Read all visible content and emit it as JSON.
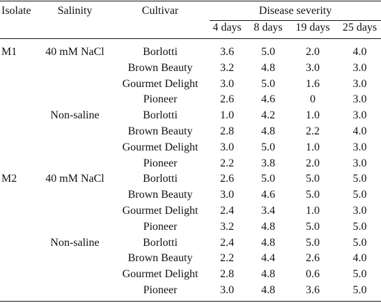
{
  "headers": {
    "isolate": "Isolate",
    "salinity": "Salinity",
    "cultivar": "Cultivar",
    "disease_severity": "Disease severity",
    "days": [
      "4 days",
      "8 days",
      "19 days",
      "25 days"
    ]
  },
  "rows": [
    {
      "isolate": "M1",
      "salinity": "40 mM NaCl",
      "cultivar": "Borlotti",
      "values": [
        "3.6",
        "5.0",
        "2.0",
        "4.0"
      ]
    },
    {
      "isolate": "",
      "salinity": "",
      "cultivar": "Brown Beauty",
      "values": [
        "3.2",
        "4.8",
        "3.0",
        "3.0"
      ]
    },
    {
      "isolate": "",
      "salinity": "",
      "cultivar": "Gourmet Delight",
      "values": [
        "3.0",
        "5.0",
        "1.6",
        "3.0"
      ]
    },
    {
      "isolate": "",
      "salinity": "",
      "cultivar": "Pioneer",
      "values": [
        "2.6",
        "4.6",
        "0",
        "3.0"
      ]
    },
    {
      "isolate": "",
      "salinity": "Non-saline",
      "cultivar": "Borlotti",
      "values": [
        "1.0",
        "4.2",
        "1.0",
        "3.0"
      ]
    },
    {
      "isolate": "",
      "salinity": "",
      "cultivar": "Brown Beauty",
      "values": [
        "2.8",
        "4.8",
        "2.2",
        "4.0"
      ]
    },
    {
      "isolate": "",
      "salinity": "",
      "cultivar": "Gourmet Delight",
      "values": [
        "3.0",
        "5.0",
        "1.0",
        "3.0"
      ]
    },
    {
      "isolate": "",
      "salinity": "",
      "cultivar": "Pioneer",
      "values": [
        "2.2",
        "3.8",
        "2.0",
        "3.0"
      ]
    },
    {
      "isolate": "M2",
      "salinity": "40 mM NaCl",
      "cultivar": "Borlotti",
      "values": [
        "2.6",
        "5.0",
        "5.0",
        "5.0"
      ]
    },
    {
      "isolate": "",
      "salinity": "",
      "cultivar": "Brown Beauty",
      "values": [
        "3.0",
        "4.6",
        "5.0",
        "5.0"
      ]
    },
    {
      "isolate": "",
      "salinity": "",
      "cultivar": "Gourmet Delight",
      "values": [
        "2.4",
        "3.4",
        "1.0",
        "3.0"
      ]
    },
    {
      "isolate": "",
      "salinity": "",
      "cultivar": "Pioneer",
      "values": [
        "3.2",
        "4.8",
        "5.0",
        "5.0"
      ]
    },
    {
      "isolate": "",
      "salinity": "Non-saline",
      "cultivar": "Borlotti",
      "values": [
        "2.4",
        "4.8",
        "5.0",
        "5.0"
      ]
    },
    {
      "isolate": "",
      "salinity": "",
      "cultivar": "Brown Beauty",
      "values": [
        "2.2",
        "4.4",
        "2.6",
        "4.0"
      ]
    },
    {
      "isolate": "",
      "salinity": "",
      "cultivar": "Gourmet Delight",
      "values": [
        "2.8",
        "4.8",
        "0.6",
        "5.0"
      ]
    },
    {
      "isolate": "",
      "salinity": "",
      "cultivar": "Pioneer",
      "values": [
        "3.0",
        "4.8",
        "3.6",
        "5.0"
      ]
    }
  ]
}
